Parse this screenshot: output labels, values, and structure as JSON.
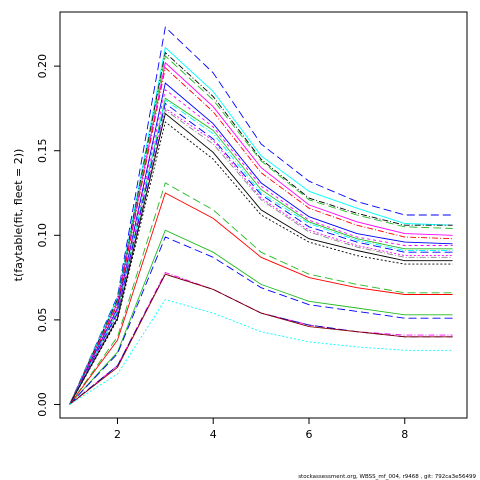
{
  "chart_data": {
    "type": "line",
    "title": "",
    "xlabel": "",
    "ylabel": "t(faytable(fit, fleet = 2))",
    "xlim": [
      0.8,
      9.3
    ],
    "ylim": [
      -0.008,
      0.232
    ],
    "xticks": [
      2,
      4,
      6,
      8
    ],
    "yticks": [
      0.0,
      0.05,
      0.1,
      0.15,
      0.2
    ],
    "ytick_labels": [
      "0.00",
      "0.05",
      "0.10",
      "0.15",
      "0.20"
    ],
    "grid": false,
    "legend": "none",
    "x": [
      1,
      2,
      3,
      4,
      5,
      6,
      7,
      8,
      9
    ],
    "series": [
      {
        "color": "#0000ff",
        "dash": "8,4",
        "values": [
          0,
          0.064,
          0.223,
          0.196,
          0.154,
          0.132,
          0.12,
          0.112,
          0.112
        ]
      },
      {
        "color": "#00ffff",
        "dash": "",
        "values": [
          0,
          0.063,
          0.211,
          0.185,
          0.147,
          0.126,
          0.116,
          0.107,
          0.106
        ]
      },
      {
        "color": "#000000",
        "dash": "6,2,1,2",
        "values": [
          0,
          0.062,
          0.208,
          0.182,
          0.145,
          0.122,
          0.113,
          0.106,
          0.106
        ]
      },
      {
        "color": "#22bb22",
        "dash": "8,4",
        "values": [
          0,
          0.061,
          0.206,
          0.18,
          0.144,
          0.121,
          0.112,
          0.105,
          0.104
        ]
      },
      {
        "color": "#ff00ff",
        "dash": "",
        "values": [
          0,
          0.06,
          0.202,
          0.176,
          0.14,
          0.118,
          0.108,
          0.101,
          0.1
        ]
      },
      {
        "color": "#ff0000",
        "dash": "6,2,1,2",
        "values": [
          0,
          0.059,
          0.199,
          0.173,
          0.137,
          0.116,
          0.106,
          0.099,
          0.098
        ]
      },
      {
        "color": "#0000ff",
        "dash": "",
        "values": [
          0,
          0.057,
          0.19,
          0.166,
          0.131,
          0.111,
          0.101,
          0.096,
          0.095
        ]
      },
      {
        "color": "#ff00ff",
        "dash": "3,3",
        "values": [
          0,
          0.056,
          0.186,
          0.164,
          0.129,
          0.109,
          0.099,
          0.094,
          0.094
        ]
      },
      {
        "color": "#22bb22",
        "dash": "",
        "values": [
          0,
          0.055,
          0.181,
          0.162,
          0.127,
          0.108,
          0.098,
          0.092,
          0.092
        ]
      },
      {
        "color": "#00ffff",
        "dash": "6,2,1,2",
        "values": [
          0,
          0.055,
          0.18,
          0.16,
          0.125,
          0.107,
          0.097,
          0.091,
          0.091
        ]
      },
      {
        "color": "#0000ff",
        "dash": "8,4",
        "values": [
          0,
          0.054,
          0.178,
          0.157,
          0.124,
          0.105,
          0.096,
          0.09,
          0.09
        ]
      },
      {
        "color": "#ff00ff",
        "dash": "2,2",
        "values": [
          0,
          0.053,
          0.175,
          0.156,
          0.122,
          0.103,
          0.094,
          0.088,
          0.088
        ]
      },
      {
        "color": "#888888",
        "dash": "6,2,1,2",
        "values": [
          0,
          0.052,
          0.174,
          0.154,
          0.121,
          0.102,
          0.093,
          0.087,
          0.087
        ]
      },
      {
        "color": "#000000",
        "dash": "",
        "values": [
          0,
          0.051,
          0.172,
          0.149,
          0.115,
          0.098,
          0.091,
          0.085,
          0.085
        ]
      },
      {
        "color": "#000000",
        "dash": "2,2",
        "values": [
          0,
          0.05,
          0.167,
          0.145,
          0.112,
          0.096,
          0.088,
          0.083,
          0.083
        ]
      },
      {
        "color": "#22bb22",
        "dash": "8,4",
        "values": [
          0,
          0.04,
          0.131,
          0.115,
          0.09,
          0.077,
          0.071,
          0.066,
          0.066
        ]
      },
      {
        "color": "#ff0000",
        "dash": "",
        "values": [
          0,
          0.038,
          0.125,
          0.11,
          0.087,
          0.075,
          0.069,
          0.065,
          0.065
        ]
      },
      {
        "color": "#22bb22",
        "dash": "",
        "values": [
          0,
          0.031,
          0.103,
          0.09,
          0.071,
          0.061,
          0.057,
          0.053,
          0.053
        ]
      },
      {
        "color": "#0000ff",
        "dash": "8,4",
        "values": [
          0,
          0.03,
          0.099,
          0.087,
          0.069,
          0.059,
          0.055,
          0.051,
          0.051
        ]
      },
      {
        "color": "#ff00ff",
        "dash": "6,2,1,2",
        "values": [
          0,
          0.023,
          0.078,
          0.068,
          0.054,
          0.047,
          0.043,
          0.041,
          0.041
        ]
      },
      {
        "color": "#0000aa",
        "dash": "8,4",
        "values": [
          0,
          0.023,
          0.077,
          0.068,
          0.054,
          0.047,
          0.043,
          0.04,
          0.04
        ]
      },
      {
        "color": "#880000",
        "dash": "",
        "values": [
          0,
          0.022,
          0.077,
          0.068,
          0.054,
          0.046,
          0.043,
          0.04,
          0.04
        ]
      },
      {
        "color": "#00ffff",
        "dash": "2,2",
        "values": [
          0,
          0.018,
          0.062,
          0.054,
          0.043,
          0.037,
          0.034,
          0.032,
          0.032
        ]
      }
    ],
    "footnote": "stockassessment.org, WBSS_mf_004, r9468 , git: 792ca3e56499"
  }
}
